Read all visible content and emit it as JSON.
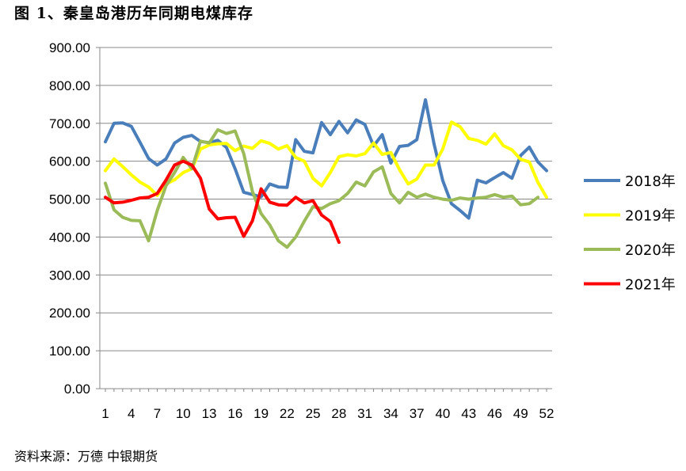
{
  "title": "图 1、秦皇岛港历年同期电煤库存",
  "source": "资料来源：万德 中银期货",
  "chart_data": {
    "type": "line",
    "title": "图 1、秦皇岛港历年同期电煤库存",
    "ylim": [
      0,
      900
    ],
    "yticks": [
      "0.00",
      "100.00",
      "200.00",
      "300.00",
      "400.00",
      "500.00",
      "600.00",
      "700.00",
      "800.00",
      "900.00"
    ],
    "yticks_values": [
      0,
      100,
      200,
      300,
      400,
      500,
      600,
      700,
      800,
      900
    ],
    "xticks": [
      1,
      4,
      7,
      10,
      13,
      16,
      19,
      22,
      25,
      28,
      31,
      34,
      37,
      40,
      43,
      46,
      49,
      52
    ],
    "xlim": [
      1,
      52
    ],
    "grid": true,
    "legend": "right",
    "series": [
      {
        "name": "2018年",
        "color": "#4a7ebb",
        "values": [
          651,
          700,
          701,
          692,
          650,
          607,
          590,
          606,
          648,
          663,
          668,
          652,
          649,
          655,
          636,
          580,
          518,
          512,
          506,
          540,
          532,
          531,
          657,
          626,
          622,
          702,
          670,
          705,
          675,
          709,
          697,
          640,
          670,
          595,
          639,
          642,
          657,
          762,
          645,
          549,
          488,
          470,
          450,
          550,
          543,
          557,
          570,
          555,
          615,
          637,
          598,
          575
        ]
      },
      {
        "name": "2019年",
        "color": "#ffff00",
        "values": [
          575,
          606,
          586,
          564,
          545,
          532,
          510,
          540,
          551,
          570,
          580,
          632,
          643,
          646,
          647,
          628,
          640,
          634,
          654,
          647,
          632,
          641,
          610,
          600,
          555,
          535,
          570,
          612,
          617,
          614,
          620,
          648,
          618,
          623,
          578,
          540,
          553,
          590,
          590,
          632,
          703,
          691,
          660,
          655,
          645,
          672,
          641,
          630,
          605,
          598,
          544,
          505
        ]
      },
      {
        "name": "2020年",
        "color": "#9bbb59",
        "values": [
          542,
          472,
          452,
          444,
          443,
          390,
          470,
          535,
          570,
          610,
          580,
          653,
          648,
          683,
          673,
          680,
          620,
          520,
          462,
          432,
          390,
          373,
          400,
          442,
          480,
          475,
          488,
          496,
          515,
          545,
          535,
          572,
          585,
          515,
          490,
          518,
          505,
          513,
          505,
          500,
          497,
          503,
          500,
          503,
          505,
          512,
          505,
          508,
          485,
          488,
          505,
          null
        ]
      },
      {
        "name": "2021年",
        "color": "#ff0000",
        "values": [
          505,
          490,
          492,
          497,
          503,
          505,
          515,
          550,
          590,
          600,
          590,
          555,
          474,
          448,
          451,
          452,
          402,
          443,
          527,
          492,
          485,
          484,
          505,
          490,
          496,
          458,
          441,
          386,
          null,
          null,
          null,
          null,
          null,
          null,
          null,
          null,
          null,
          null,
          null,
          null,
          null,
          null,
          null,
          null,
          null,
          null,
          null,
          null,
          null,
          null,
          null,
          null
        ]
      }
    ]
  }
}
